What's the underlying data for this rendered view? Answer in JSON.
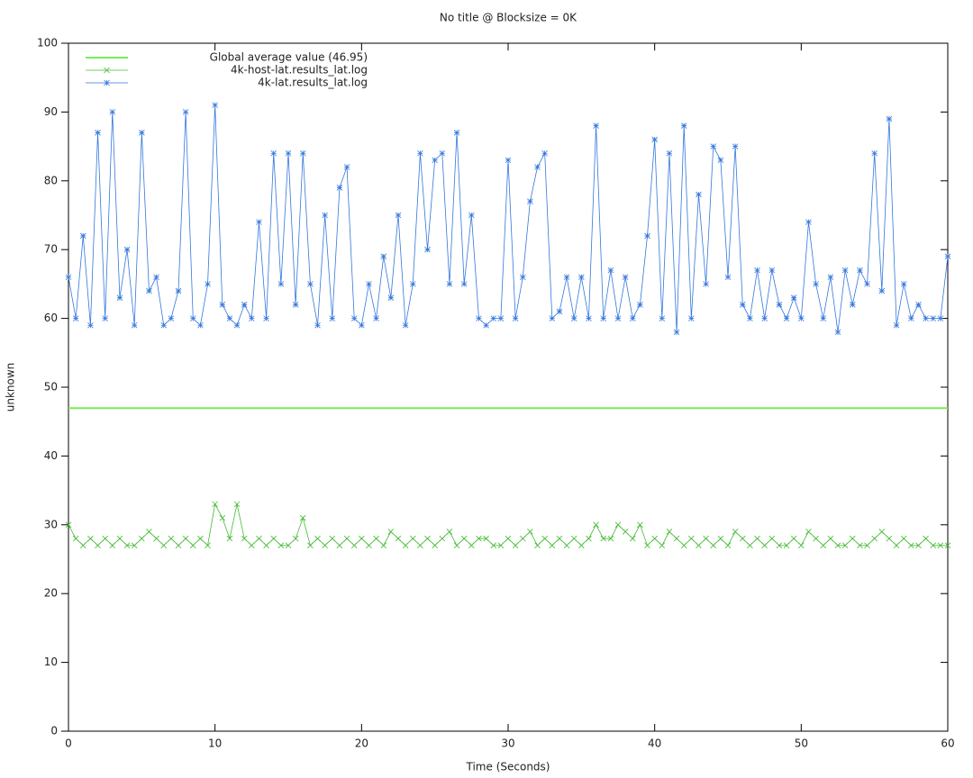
{
  "chart_data": {
    "type": "line",
    "title": "No title @ Blocksize = 0K",
    "x_label": "Time (Seconds)",
    "y_label": "unknown",
    "xlim": [
      0,
      60
    ],
    "ylim": [
      0,
      100
    ],
    "xticks": [
      0,
      10,
      20,
      30,
      40,
      50,
      60
    ],
    "yticks": [
      0,
      10,
      20,
      30,
      40,
      50,
      60,
      70,
      80,
      90,
      100
    ],
    "legend": "top-left",
    "average": {
      "name": "Global average value (46.95)",
      "value": 46.95,
      "color": "#77ee55"
    },
    "x": [
      0,
      0.5,
      1,
      1.5,
      2,
      2.5,
      3,
      3.5,
      4,
      4.5,
      5,
      5.5,
      6,
      6.5,
      7,
      7.5,
      8,
      8.5,
      9,
      9.5,
      10,
      10.5,
      11,
      11.5,
      12,
      12.5,
      13,
      13.5,
      14,
      14.5,
      15,
      15.5,
      16,
      16.5,
      17,
      17.5,
      18,
      18.5,
      19,
      19.5,
      20,
      20.5,
      21,
      21.5,
      22,
      22.5,
      23,
      23.5,
      24,
      24.5,
      25,
      25.5,
      26,
      26.5,
      27,
      27.5,
      28,
      28.5,
      29,
      29.5,
      30,
      30.5,
      31,
      31.5,
      32,
      32.5,
      33,
      33.5,
      34,
      34.5,
      35,
      35.5,
      36,
      36.5,
      37,
      37.5,
      38,
      38.5,
      39,
      39.5,
      40,
      40.5,
      41,
      41.5,
      42,
      42.5,
      43,
      43.5,
      44,
      44.5,
      45,
      45.5,
      46,
      46.5,
      47,
      47.5,
      48,
      48.5,
      49,
      49.5,
      50,
      50.5,
      51,
      51.5,
      52,
      52.5,
      53,
      53.5,
      54,
      54.5,
      55,
      55.5,
      56,
      56.5,
      57,
      57.5,
      58,
      58.5,
      59,
      59.5,
      60
    ],
    "series": [
      {
        "name": "4k-host-lat.results_lat.log",
        "color": "#44bb33",
        "marker": "x",
        "values": [
          30,
          28,
          27,
          28,
          27,
          28,
          27,
          28,
          27,
          27,
          28,
          29,
          28,
          27,
          28,
          27,
          28,
          27,
          28,
          27,
          33,
          31,
          28,
          33,
          28,
          27,
          28,
          27,
          28,
          27,
          27,
          28,
          31,
          27,
          28,
          27,
          28,
          27,
          28,
          27,
          28,
          27,
          28,
          27,
          29,
          28,
          27,
          28,
          27,
          28,
          27,
          28,
          29,
          27,
          28,
          27,
          28,
          28,
          27,
          27,
          28,
          27,
          28,
          29,
          27,
          28,
          27,
          28,
          27,
          28,
          27,
          28,
          30,
          28,
          28,
          30,
          29,
          28,
          30,
          27,
          28,
          27,
          29,
          28,
          27,
          28,
          27,
          28,
          27,
          28,
          27,
          29,
          28,
          27,
          28,
          27,
          28,
          27,
          27,
          28,
          27,
          29,
          28,
          27,
          28,
          27,
          27,
          28,
          27,
          27,
          28,
          29,
          28,
          27,
          28,
          27,
          27,
          28,
          27,
          27,
          27
        ]
      },
      {
        "name": "4k-lat.results_lat.log",
        "color": "#3377dd",
        "marker": "star",
        "values": [
          66,
          60,
          72,
          59,
          87,
          60,
          90,
          63,
          70,
          59,
          87,
          64,
          66,
          59,
          60,
          64,
          90,
          60,
          59,
          65,
          91,
          62,
          60,
          59,
          62,
          60,
          74,
          60,
          84,
          65,
          84,
          62,
          84,
          65,
          59,
          75,
          60,
          79,
          82,
          60,
          59,
          65,
          60,
          69,
          63,
          75,
          59,
          65,
          84,
          70,
          83,
          84,
          65,
          87,
          65,
          75,
          60,
          59,
          60,
          60,
          83,
          60,
          66,
          77,
          82,
          84,
          60,
          61,
          66,
          60,
          66,
          60,
          88,
          60,
          67,
          60,
          66,
          60,
          62,
          72,
          86,
          60,
          84,
          58,
          88,
          60,
          78,
          65,
          85,
          83,
          66,
          85,
          62,
          60,
          67,
          60,
          67,
          62,
          60,
          63,
          60,
          74,
          65,
          60,
          66,
          58,
          67,
          62,
          67,
          65,
          84,
          64,
          89,
          59,
          65,
          60,
          62,
          60,
          60,
          60,
          69
        ]
      }
    ]
  }
}
